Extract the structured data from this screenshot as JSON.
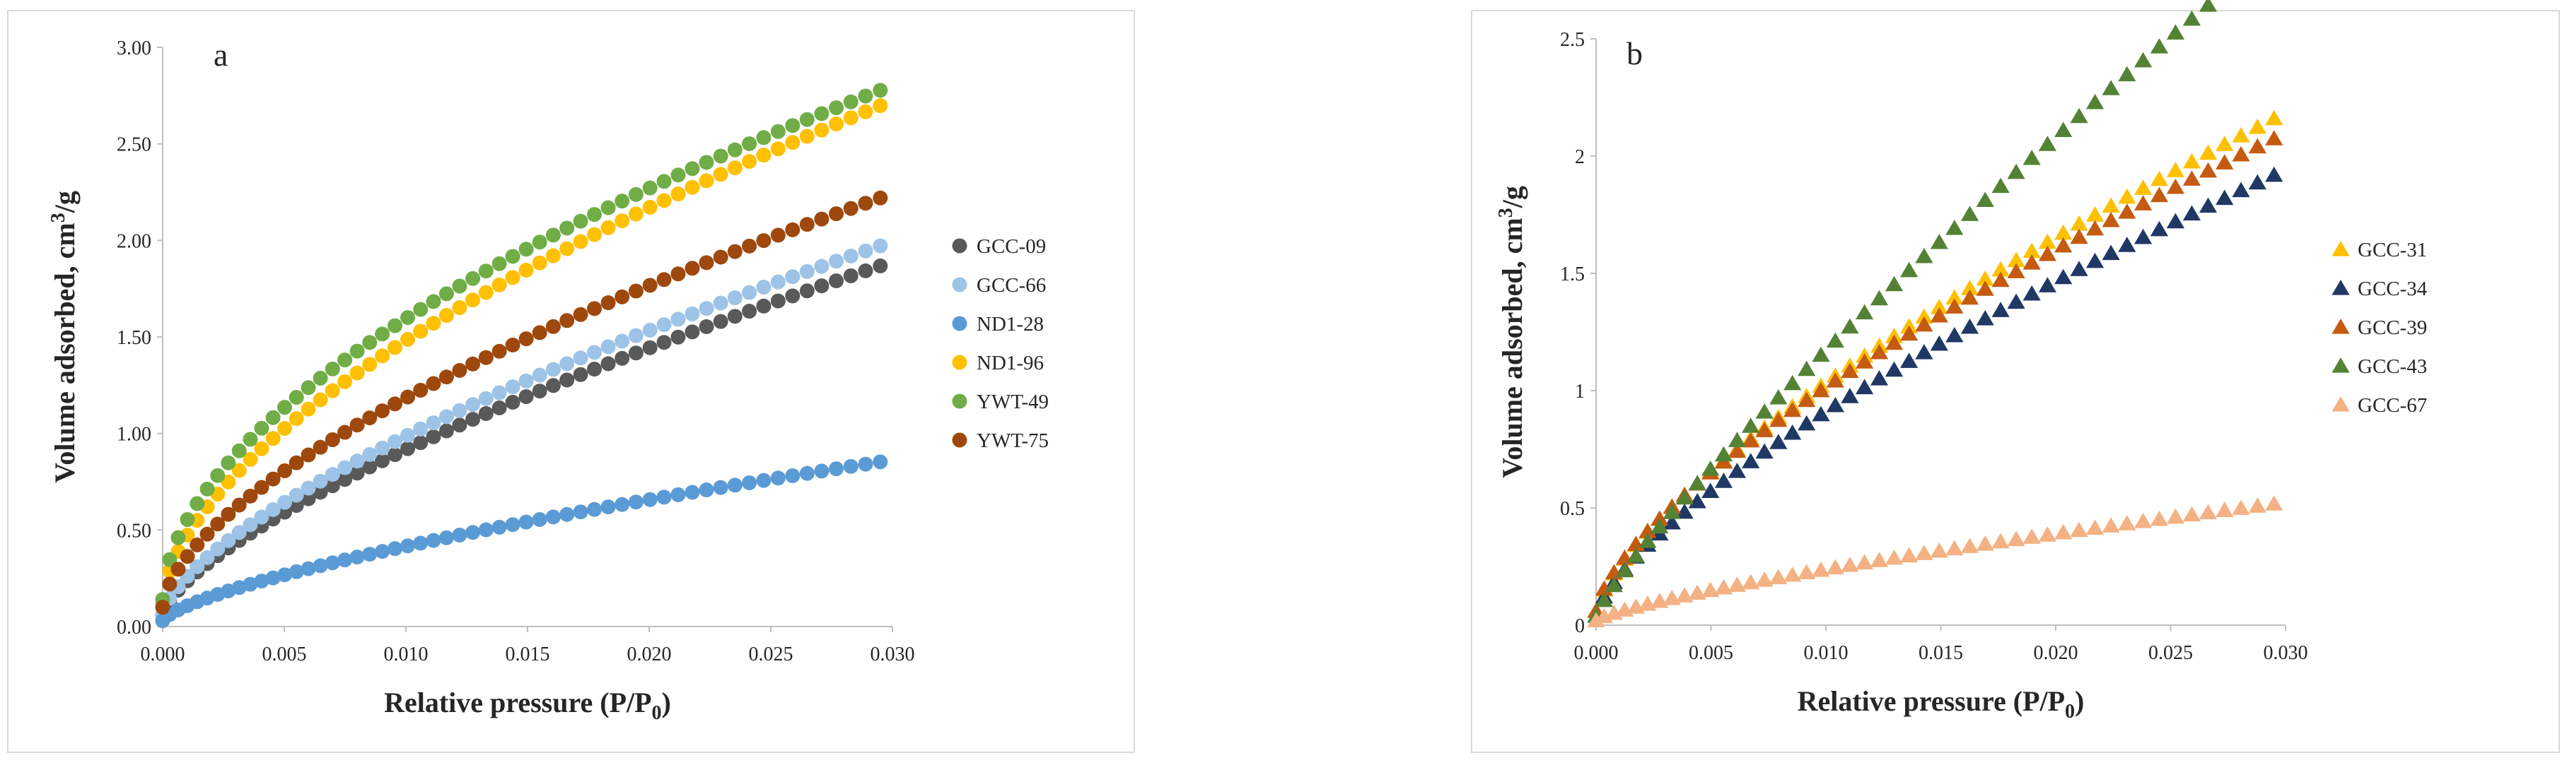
{
  "chart_data": [
    {
      "type": "scatter",
      "panel_label": "a",
      "xlabel": "Relative pressure (P/P",
      "xlabel_sub": "0",
      "xlabel_end": ")",
      "ylabel": "Volume adsorbed, cm",
      "ylabel_sup": "3",
      "ylabel_end": "/g",
      "xlim": [
        0,
        0.03
      ],
      "ylim": [
        0,
        3.0
      ],
      "xticks": [
        "0.000",
        "0.005",
        "0.010",
        "0.015",
        "0.020",
        "0.025",
        "0.030"
      ],
      "yticks": [
        "0.00",
        "0.50",
        "1.00",
        "1.50",
        "2.00",
        "2.50",
        "3.00"
      ],
      "marker": "circle",
      "grid": false,
      "legend_position": "right",
      "series": [
        {
          "name": "GCC-09",
          "color": "#595959",
          "k": 0.175,
          "p": 0.69,
          "y0": 0.06
        },
        {
          "name": "GCC-66",
          "color": "#9dc3e6",
          "k": 0.198,
          "p": 0.67,
          "y0": 0.06
        },
        {
          "name": "ND1-28",
          "color": "#5b9bd5",
          "k": 0.077,
          "p": 0.7,
          "y0": 0.03
        },
        {
          "name": "ND1-96",
          "color": "#ffc000",
          "k": 0.35,
          "p": 0.59,
          "y0": 0.12
        },
        {
          "name": "YWT-49",
          "color": "#70ad47",
          "k": 0.41,
          "p": 0.55,
          "y0": 0.14
        },
        {
          "name": "YWT-75",
          "color": "#9e480e",
          "k": 0.26,
          "p": 0.62,
          "y0": 0.1
        }
      ]
    },
    {
      "type": "scatter",
      "panel_label": "b",
      "xlabel": "Relative pressure (P/P",
      "xlabel_sub": "0",
      "xlabel_end": ")",
      "ylabel": "Volume adsorbed, cm",
      "ylabel_sup": "3",
      "ylabel_end": "/g",
      "xlim": [
        0,
        0.03
      ],
      "ylim": [
        0,
        2.5
      ],
      "xticks": [
        "0.000",
        "0.005",
        "0.010",
        "0.015",
        "0.020",
        "0.025",
        "0.030"
      ],
      "yticks": [
        "0",
        "0.5",
        "1",
        "1.5",
        "2",
        "2.5"
      ],
      "marker": "triangle",
      "grid": false,
      "legend_position": "right",
      "series": [
        {
          "name": "GCC-31",
          "color": "#ffc000",
          "k": 0.19,
          "p": 0.71,
          "y0": 0.06
        },
        {
          "name": "GCC-34",
          "color": "#203864",
          "k": 0.17,
          "p": 0.71,
          "y0": 0.04
        },
        {
          "name": "GCC-39",
          "color": "#c55a11",
          "k": 0.195,
          "p": 0.69,
          "y0": 0.06
        },
        {
          "name": "GCC-43",
          "color": "#548235",
          "k": 0.16,
          "p": 0.85,
          "y0": 0.04
        },
        {
          "name": "GCC-67",
          "color": "#f4b183",
          "k": 0.038,
          "p": 0.76,
          "y0": 0.02
        }
      ]
    }
  ]
}
